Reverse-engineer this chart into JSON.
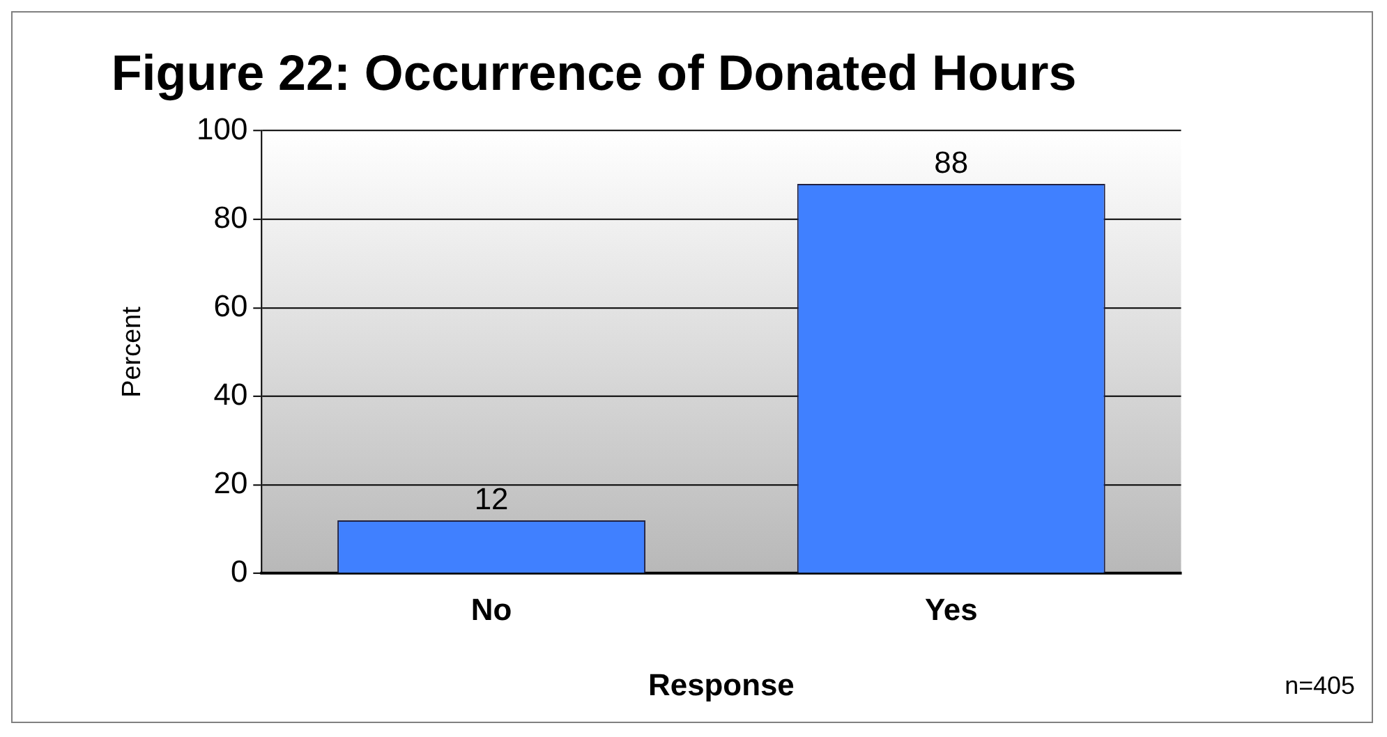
{
  "chart_data": {
    "type": "bar",
    "title": "Figure 22: Occurrence of Donated Hours",
    "xlabel": "Response",
    "ylabel": "Percent",
    "categories": [
      "No",
      "Yes"
    ],
    "values": [
      12,
      88
    ],
    "color": "#4080ff",
    "ylim": [
      0,
      100
    ],
    "yticks": [
      0,
      20,
      40,
      60,
      80,
      100
    ],
    "grid": "y",
    "data_labels": true,
    "legend": false,
    "annotations": [
      "n=405"
    ]
  }
}
